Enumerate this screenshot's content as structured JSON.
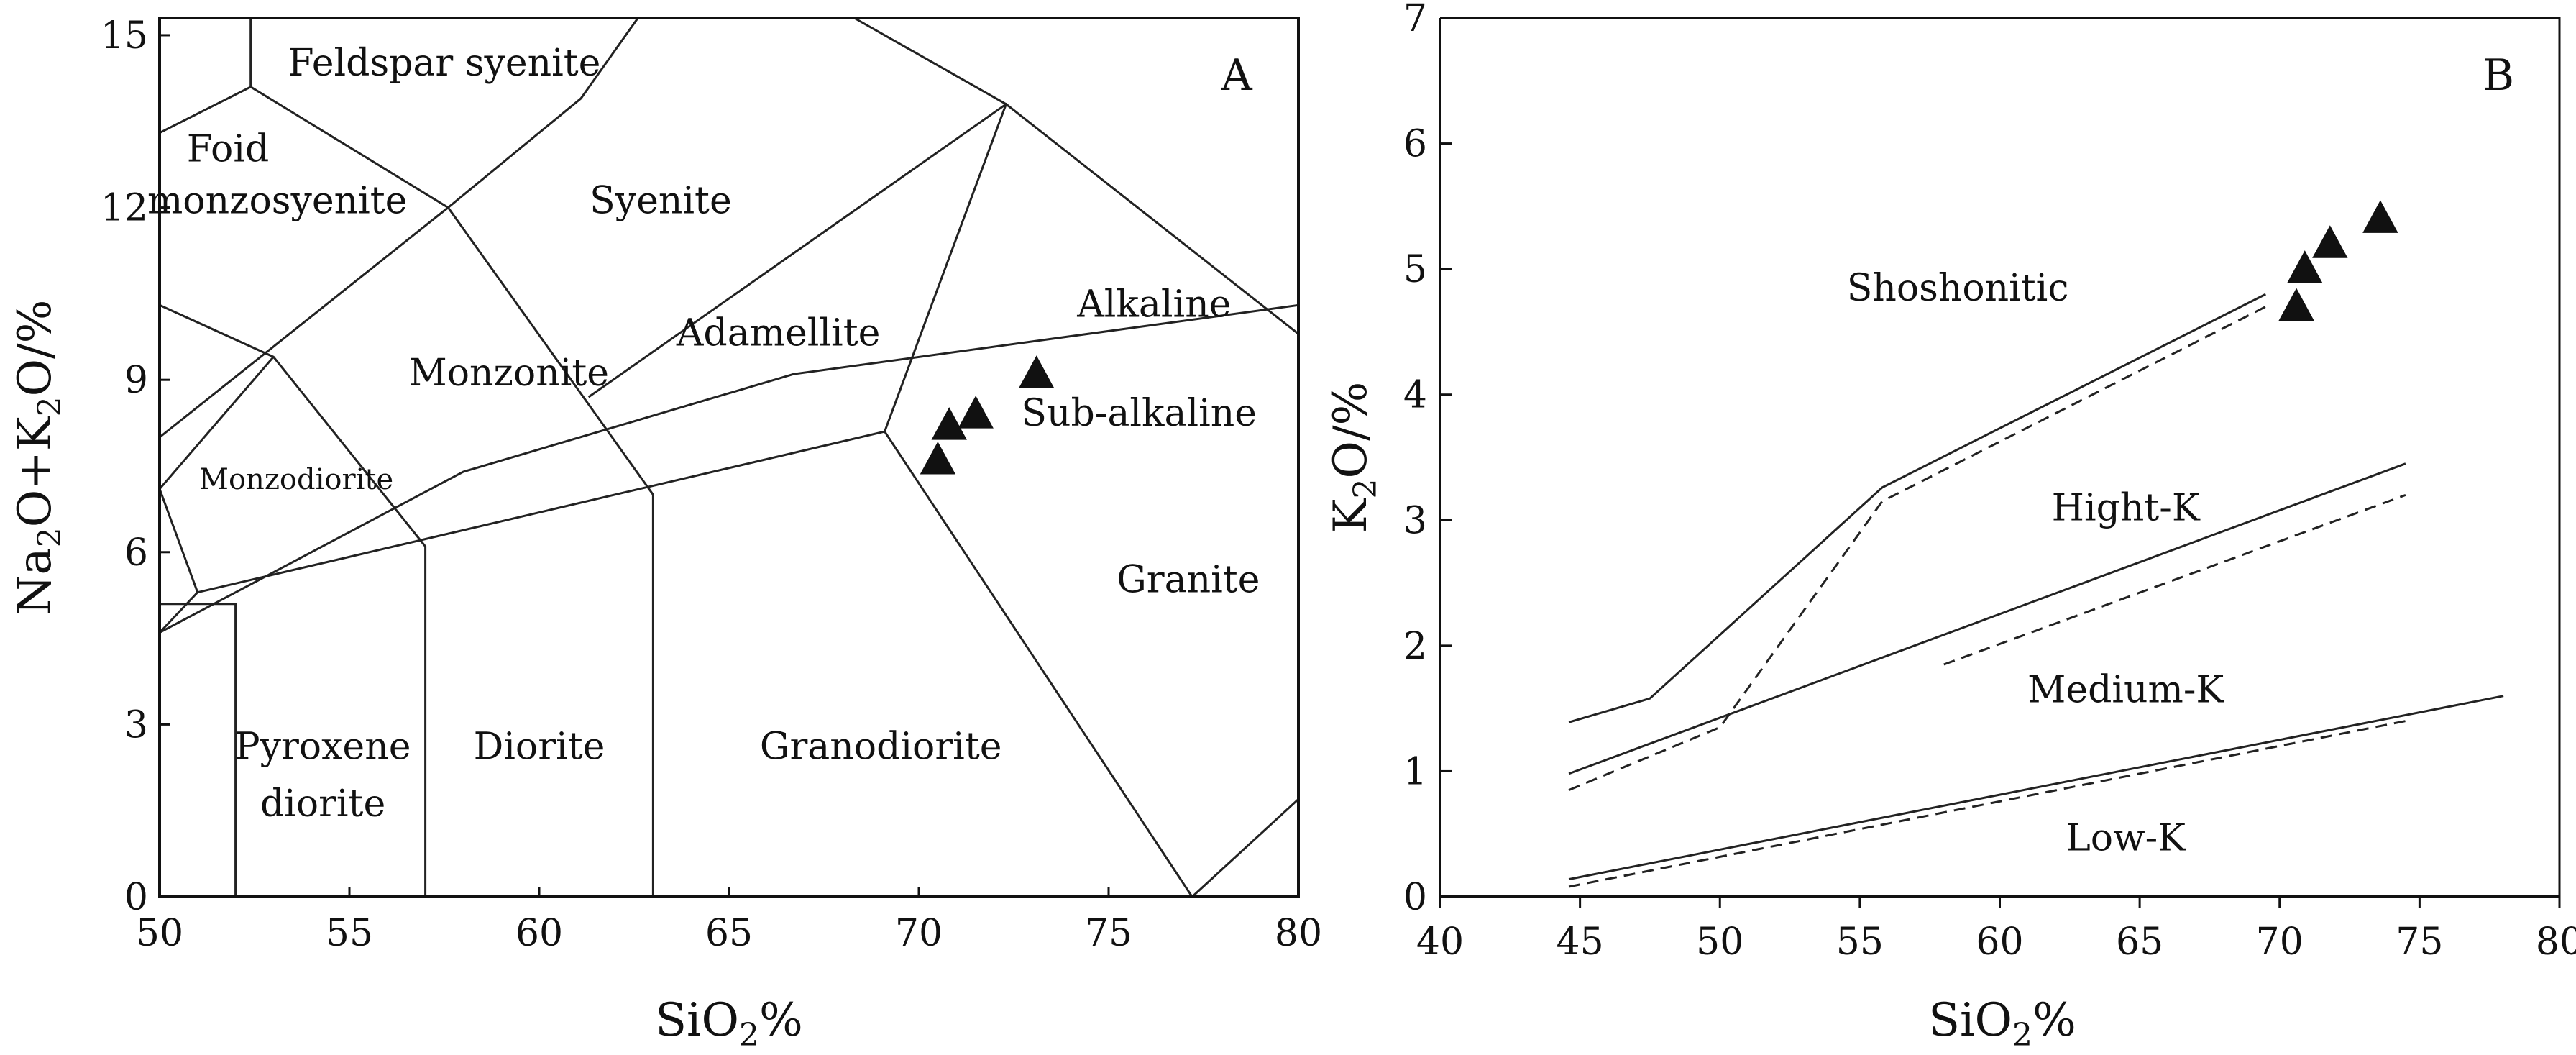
{
  "chart_data": [
    {
      "type": "scatter",
      "panel_label": "A",
      "xlabel": "SiO<sub>2</sub>%",
      "ylabel": "Na<sub>2</sub>O+K<sub>2</sub>O/%",
      "xlim": [
        50,
        80
      ],
      "ylim": [
        0,
        15.3
      ],
      "x_ticks": [
        "50",
        "55",
        "60",
        "65",
        "70",
        "75",
        "80"
      ],
      "y_ticks": [
        "0",
        "3",
        "6",
        "9",
        "12",
        "15"
      ],
      "grid": false,
      "field_labels": [
        {
          "text": "Feldspar syenite",
          "x": 57.5,
          "y": 14.3
        },
        {
          "text": "Foid",
          "x": 51.8,
          "y": 12.8
        },
        {
          "text": "monzosyenite",
          "x": 53.1,
          "y": 11.9
        },
        {
          "text": "Syenite",
          "x": 63.2,
          "y": 11.9
        },
        {
          "text": "Alkaline",
          "x": 76.2,
          "y": 10.1
        },
        {
          "text": "Adamellite",
          "x": 66.3,
          "y": 9.6
        },
        {
          "text": "Monzonite",
          "x": 59.2,
          "y": 8.9
        },
        {
          "text": "Sub-alkaline",
          "x": 75.8,
          "y": 8.2
        },
        {
          "text": "Monzodiorite",
          "x": 53.6,
          "y": 7.1
        },
        {
          "text": "Granite",
          "x": 77.1,
          "y": 5.3
        },
        {
          "text": "Pyroxene",
          "x": 54.3,
          "y": 2.4
        },
        {
          "text": "diorite",
          "x": 54.3,
          "y": 1.4
        },
        {
          "text": "Diorite",
          "x": 60.0,
          "y": 2.4
        },
        {
          "text": "Granodiorite",
          "x": 69.0,
          "y": 2.4
        }
      ],
      "boundaries": [
        [
          [
            52.4,
            15.3
          ],
          [
            52.4,
            14.1
          ],
          [
            50.0,
            13.3
          ]
        ],
        [
          [
            52.4,
            14.1
          ],
          [
            57.6,
            12.0
          ],
          [
            50.0,
            8.0
          ]
        ],
        [
          [
            50.0,
            10.3
          ],
          [
            53.0,
            9.4
          ],
          [
            57.0,
            6.1
          ],
          [
            57.0,
            0
          ]
        ],
        [
          [
            53.0,
            9.4
          ],
          [
            50.0,
            7.1
          ],
          [
            51.0,
            5.3
          ],
          [
            50.0,
            4.6
          ]
        ],
        [
          [
            50.0,
            5.1
          ],
          [
            52.0,
            5.1
          ],
          [
            52.0,
            0
          ]
        ],
        [
          [
            57.6,
            12.0
          ],
          [
            63.0,
            7.0
          ],
          [
            63.0,
            0
          ]
        ],
        [
          [
            57.6,
            12.0
          ],
          [
            61.1,
            13.9
          ],
          [
            62.6,
            15.3
          ]
        ],
        [
          [
            51.0,
            5.3
          ],
          [
            69.1,
            8.1
          ],
          [
            77.2,
            0
          ]
        ],
        [
          [
            69.1,
            8.1
          ],
          [
            72.3,
            13.8
          ]
        ],
        [
          [
            61.3,
            8.7
          ],
          [
            72.3,
            13.8
          ],
          [
            80.0,
            9.8
          ]
        ],
        [
          [
            68.3,
            15.3
          ],
          [
            72.3,
            13.8
          ]
        ],
        [
          [
            50.0,
            4.6
          ],
          [
            58.0,
            7.4
          ],
          [
            66.7,
            9.1
          ],
          [
            80.0,
            10.3
          ]
        ],
        [
          [
            77.2,
            0
          ],
          [
            80.0,
            1.7
          ]
        ]
      ],
      "points": [
        {
          "x": 70.5,
          "y": 7.6
        },
        {
          "x": 70.8,
          "y": 8.2
        },
        {
          "x": 71.5,
          "y": 8.4
        },
        {
          "x": 73.1,
          "y": 9.1
        }
      ]
    },
    {
      "type": "line",
      "panel_label": "B",
      "xlabel": "SiO<sub>2</sub>%",
      "ylabel": "K<sub>2</sub>O/%",
      "xlim": [
        40,
        80
      ],
      "ylim": [
        0,
        7
      ],
      "x_ticks": [
        "40",
        "45",
        "50",
        "55",
        "60",
        "65",
        "70",
        "75",
        "80"
      ],
      "y_ticks": [
        "0",
        "1",
        "2",
        "3",
        "4",
        "5",
        "6",
        "7"
      ],
      "grid": false,
      "field_labels": [
        {
          "text": "Shoshonitic",
          "x": 58.5,
          "y": 4.75
        },
        {
          "text": "Hight-K",
          "x": 64.5,
          "y": 3.0
        },
        {
          "text": "Medium-K",
          "x": 64.5,
          "y": 1.55
        },
        {
          "text": "Low-K",
          "x": 64.5,
          "y": 0.37
        }
      ],
      "solid_lines": [
        [
          [
            44.6,
            1.39
          ],
          [
            47.5,
            1.58
          ],
          [
            55.8,
            3.26
          ],
          [
            69.5,
            4.8
          ]
        ],
        [
          [
            44.6,
            0.98
          ],
          [
            74.5,
            3.45
          ]
        ],
        [
          [
            44.6,
            0.14
          ],
          [
            78.0,
            1.6
          ]
        ]
      ],
      "dashed_lines": [
        [
          [
            44.6,
            0.85
          ],
          [
            50.0,
            1.35
          ],
          [
            55.8,
            3.15
          ],
          [
            69.5,
            4.7
          ]
        ],
        [
          [
            58.0,
            1.85
          ],
          [
            74.5,
            3.2
          ]
        ],
        [
          [
            44.6,
            0.08
          ],
          [
            74.5,
            1.4
          ]
        ]
      ],
      "points": [
        {
          "x": 70.6,
          "y": 4.7
        },
        {
          "x": 70.9,
          "y": 5.0
        },
        {
          "x": 71.8,
          "y": 5.2
        },
        {
          "x": 73.6,
          "y": 5.4
        }
      ]
    }
  ]
}
